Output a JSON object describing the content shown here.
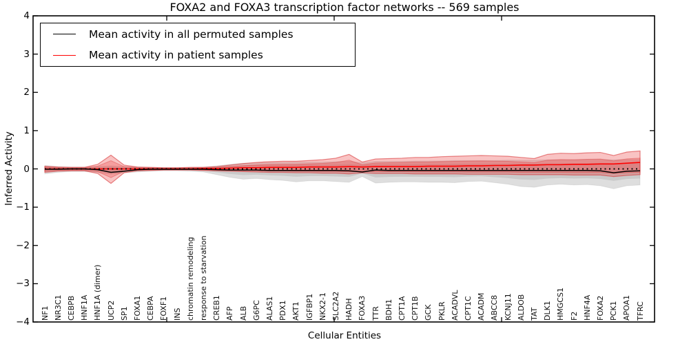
{
  "chart_data": {
    "type": "line",
    "title": "FOXA2 and FOXA3 transcription factor networks -- 569 samples",
    "xlabel": "Cellular Entities",
    "ylabel": "Inferred Activity",
    "ylim": [
      -4,
      4
    ],
    "yticks": [
      "4",
      "3",
      "2",
      "1",
      "0",
      "−1",
      "−2",
      "−3",
      "−4"
    ],
    "ytick_values": [
      4,
      3,
      2,
      1,
      0,
      -1,
      -2,
      -3,
      -4
    ],
    "grid": "off",
    "legend_position": "upper-left",
    "zero_line": {
      "value": 0,
      "style": "dotted",
      "color": "#000000"
    },
    "entities": [
      "NF1",
      "NR3C1",
      "CEBPB",
      "HNF1A",
      "HNF1A (dimer)",
      "UCP2",
      "SP1",
      "FOXA1",
      "CEBPA",
      "FOXF1",
      "INS",
      "chromatin remodeling",
      "response to starvation",
      "CREB1",
      "AFP",
      "ALB",
      "G6PC",
      "ALAS1",
      "PDX1",
      "AKT1",
      "IGFBP1",
      "NKX2-1",
      "SLC2A2",
      "HADH",
      "FOXA3",
      "TTR",
      "BDH1",
      "CPT1A",
      "CPT1B",
      "GCK",
      "PKLR",
      "ACADVL",
      "CPT1C",
      "ACADM",
      "ABCC8",
      "KCNJ11",
      "ALDOB",
      "TAT",
      "DLK1",
      "HMGCS1",
      "F2",
      "HNF4A",
      "FOXA2",
      "PCK1",
      "APOA1",
      "TFRC"
    ],
    "series": [
      {
        "name": "Mean activity in all permuted samples",
        "color": "#000000",
        "values": [
          -0.01,
          -0.01,
          0.0,
          0.0,
          -0.02,
          -0.09,
          -0.06,
          -0.02,
          -0.01,
          -0.01,
          -0.01,
          -0.01,
          -0.01,
          -0.02,
          -0.03,
          -0.03,
          -0.03,
          -0.04,
          -0.04,
          -0.04,
          -0.04,
          -0.04,
          -0.04,
          -0.05,
          -0.08,
          -0.03,
          -0.04,
          -0.04,
          -0.04,
          -0.04,
          -0.04,
          -0.04,
          -0.04,
          -0.04,
          -0.04,
          -0.04,
          -0.04,
          -0.04,
          -0.04,
          -0.04,
          -0.04,
          -0.04,
          -0.05,
          -0.1,
          -0.06,
          -0.05
        ]
      },
      {
        "name": "Mean activity in patient samples",
        "color": "#ff0000",
        "values": [
          0.0,
          0.0,
          0.0,
          0.0,
          0.0,
          0.0,
          0.0,
          0.0,
          0.0,
          0.0,
          0.0,
          0.0,
          0.01,
          0.01,
          0.02,
          0.03,
          0.03,
          0.04,
          0.04,
          0.04,
          0.05,
          0.05,
          0.05,
          0.06,
          0.05,
          0.06,
          0.06,
          0.06,
          0.06,
          0.07,
          0.07,
          0.07,
          0.08,
          0.08,
          0.09,
          0.09,
          0.1,
          0.1,
          0.11,
          0.11,
          0.12,
          0.12,
          0.13,
          0.13,
          0.15,
          0.17
        ]
      }
    ],
    "bands": [
      {
        "name": "permuted samples range",
        "color": "gray",
        "upper": [
          0.09,
          0.06,
          0.05,
          0.05,
          0.06,
          0.08,
          0.06,
          0.05,
          0.04,
          0.04,
          0.04,
          0.04,
          0.05,
          0.08,
          0.12,
          0.15,
          0.16,
          0.17,
          0.17,
          0.18,
          0.18,
          0.18,
          0.19,
          0.2,
          0.16,
          0.2,
          0.2,
          0.2,
          0.21,
          0.21,
          0.21,
          0.22,
          0.22,
          0.22,
          0.22,
          0.23,
          0.23,
          0.23,
          0.24,
          0.24,
          0.24,
          0.25,
          0.25,
          0.24,
          0.25,
          0.25
        ],
        "lower": [
          -0.13,
          -0.09,
          -0.07,
          -0.07,
          -0.09,
          -0.14,
          -0.1,
          -0.08,
          -0.06,
          -0.05,
          -0.05,
          -0.06,
          -0.08,
          -0.15,
          -0.22,
          -0.27,
          -0.25,
          -0.28,
          -0.3,
          -0.34,
          -0.31,
          -0.31,
          -0.33,
          -0.35,
          -0.2,
          -0.37,
          -0.35,
          -0.34,
          -0.34,
          -0.35,
          -0.35,
          -0.36,
          -0.33,
          -0.32,
          -0.36,
          -0.4,
          -0.46,
          -0.48,
          -0.42,
          -0.4,
          -0.42,
          -0.41,
          -0.44,
          -0.52,
          -0.44,
          -0.42
        ]
      },
      {
        "name": "patient samples range",
        "color": "red",
        "upper": [
          0.07,
          0.05,
          0.04,
          0.04,
          0.12,
          0.36,
          0.1,
          0.05,
          0.04,
          0.03,
          0.03,
          0.04,
          0.04,
          0.06,
          0.1,
          0.14,
          0.17,
          0.19,
          0.2,
          0.2,
          0.22,
          0.24,
          0.28,
          0.38,
          0.18,
          0.26,
          0.27,
          0.28,
          0.3,
          0.3,
          0.32,
          0.33,
          0.34,
          0.35,
          0.34,
          0.33,
          0.3,
          0.27,
          0.38,
          0.41,
          0.4,
          0.42,
          0.43,
          0.35,
          0.44,
          0.47
        ],
        "lower": [
          -0.09,
          -0.06,
          -0.05,
          -0.05,
          -0.12,
          -0.38,
          -0.1,
          -0.05,
          -0.04,
          -0.03,
          -0.03,
          -0.03,
          -0.04,
          -0.05,
          -0.06,
          -0.07,
          -0.08,
          -0.09,
          -0.09,
          -0.1,
          -0.1,
          -0.11,
          -0.11,
          -0.13,
          -0.1,
          -0.12,
          -0.12,
          -0.12,
          -0.13,
          -0.13,
          -0.13,
          -0.13,
          -0.14,
          -0.14,
          -0.14,
          -0.14,
          -0.15,
          -0.15,
          -0.15,
          -0.15,
          -0.16,
          -0.16,
          -0.16,
          -0.2,
          -0.17,
          -0.15
        ]
      }
    ],
    "inner_band_fraction": 0.6
  }
}
